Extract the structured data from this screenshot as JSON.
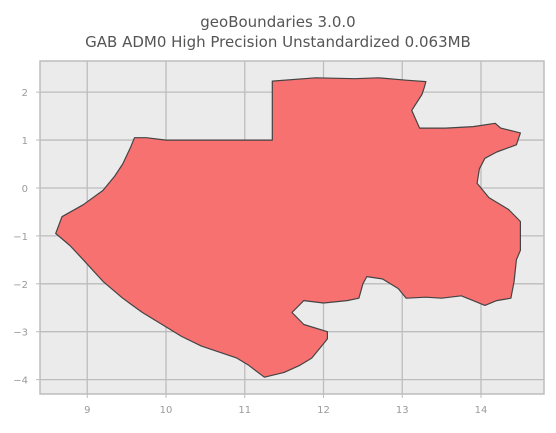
{
  "title": {
    "line1": "geoBoundaries 3.0.0",
    "line2": "GAB ADM0 High Precision Unstandardized 0.063MB"
  },
  "colors": {
    "background": "#ffffff",
    "plot_background": "#ebebeb",
    "grid": "#bdbdbd",
    "frame": "#bdbdbd",
    "fill": "#f87171",
    "outline": "#444444",
    "tick_text": "#9a9a9a"
  },
  "chart_data": {
    "type": "map",
    "title": "geoBoundaries 3.0.0 — GAB ADM0 High Precision Unstandardized 0.063MB",
    "grid": true,
    "xlim": [
      8.4,
      14.8
    ],
    "ylim": [
      -4.3,
      2.65
    ],
    "x_ticks": [
      9,
      10,
      11,
      12,
      13,
      14
    ],
    "y_ticks": [
      2,
      1,
      0,
      -1,
      -2,
      -3,
      -4
    ],
    "x_tick_labels": [
      "9",
      "10",
      "11",
      "12",
      "13",
      "14"
    ],
    "y_tick_labels": [
      "2",
      "1",
      "0",
      "−1",
      "−2",
      "−3",
      "−4"
    ],
    "outline": [
      [
        11.35,
        2.23
      ],
      [
        11.9,
        2.3
      ],
      [
        12.4,
        2.28
      ],
      [
        12.7,
        2.3
      ],
      [
        13.05,
        2.25
      ],
      [
        13.3,
        2.22
      ],
      [
        13.28,
        2.1
      ],
      [
        13.25,
        1.95
      ],
      [
        13.12,
        1.62
      ],
      [
        13.22,
        1.25
      ],
      [
        13.55,
        1.25
      ],
      [
        13.9,
        1.28
      ],
      [
        14.18,
        1.35
      ],
      [
        14.25,
        1.25
      ],
      [
        14.5,
        1.15
      ],
      [
        14.45,
        0.9
      ],
      [
        14.2,
        0.75
      ],
      [
        14.05,
        0.62
      ],
      [
        13.98,
        0.4
      ],
      [
        13.95,
        0.1
      ],
      [
        14.1,
        -0.2
      ],
      [
        14.35,
        -0.45
      ],
      [
        14.5,
        -0.7
      ],
      [
        14.5,
        -1.3
      ],
      [
        14.45,
        -1.5
      ],
      [
        14.42,
        -1.95
      ],
      [
        14.38,
        -2.3
      ],
      [
        14.2,
        -2.35
      ],
      [
        14.05,
        -2.45
      ],
      [
        13.9,
        -2.35
      ],
      [
        13.75,
        -2.25
      ],
      [
        13.5,
        -2.3
      ],
      [
        13.3,
        -2.28
      ],
      [
        13.05,
        -2.3
      ],
      [
        12.95,
        -2.1
      ],
      [
        12.75,
        -1.9
      ],
      [
        12.55,
        -1.85
      ],
      [
        12.5,
        -2.0
      ],
      [
        12.45,
        -2.3
      ],
      [
        12.3,
        -2.35
      ],
      [
        12.0,
        -2.4
      ],
      [
        11.75,
        -2.35
      ],
      [
        11.6,
        -2.6
      ],
      [
        11.75,
        -2.85
      ],
      [
        12.05,
        -3.0
      ],
      [
        12.05,
        -3.15
      ],
      [
        11.95,
        -3.35
      ],
      [
        11.85,
        -3.55
      ],
      [
        11.7,
        -3.7
      ],
      [
        11.5,
        -3.85
      ],
      [
        11.25,
        -3.95
      ],
      [
        11.05,
        -3.7
      ],
      [
        10.9,
        -3.55
      ],
      [
        10.45,
        -3.3
      ],
      [
        10.2,
        -3.1
      ],
      [
        9.95,
        -2.85
      ],
      [
        9.7,
        -2.6
      ],
      [
        9.45,
        -2.3
      ],
      [
        9.2,
        -1.95
      ],
      [
        8.95,
        -1.5
      ],
      [
        8.78,
        -1.2
      ],
      [
        8.6,
        -0.95
      ],
      [
        8.68,
        -0.6
      ],
      [
        8.95,
        -0.35
      ],
      [
        9.2,
        -0.05
      ],
      [
        9.35,
        0.25
      ],
      [
        9.45,
        0.5
      ],
      [
        9.55,
        0.85
      ],
      [
        9.6,
        1.05
      ],
      [
        9.75,
        1.05
      ],
      [
        10.0,
        1.0
      ],
      [
        11.35,
        1.0
      ]
    ]
  }
}
